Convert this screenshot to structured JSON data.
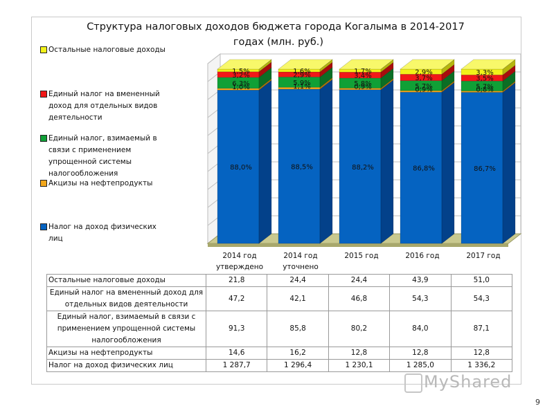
{
  "slide": {
    "title_line1": "Структура налоговых доходов бюджета города Когалыма  в 2014-2017",
    "title_line2": "годах  (млн. руб.)",
    "page_number": "9",
    "watermark": "MyShared"
  },
  "colors": {
    "series": [
      "#0563c1",
      "#f2a71b",
      "#10a036",
      "#f21818",
      "#f2f21a"
    ],
    "series_dark": [
      "#03418a",
      "#b07608",
      "#0b6e25",
      "#a80d0d",
      "#b5b50e"
    ],
    "series_top": [
      "#3f8ad8",
      "#f7c45c",
      "#45c069",
      "#f75454",
      "#f8f86a"
    ],
    "wall": "#ffffff",
    "floor": "#c9c98f",
    "grid": "#bfbfbf"
  },
  "legend": [
    "Остальные налоговые доходы",
    "Единый налог на вмененный доход для отдельных видов деятельности",
    "Единый налог, взимаемый в связи с применением упрощенной системы налогообложения",
    "Акцизы на нефтепродукты",
    "Налог на доход физических лиц"
  ],
  "chart_data": {
    "type": "bar",
    "stacked": true,
    "three_d": true,
    "title": "Структура налоговых доходов бюджета города Когалыма  в 2014-2017 годах  (млн. руб.)",
    "categories": [
      "2014 год утверждено",
      "2014 год уточнено",
      "2015 год",
      "2016 год",
      "2017 год"
    ],
    "series": [
      {
        "name": "Налог на доход физических лиц",
        "values": [
          88.0,
          88.5,
          88.2,
          86.8,
          86.7
        ],
        "labels": [
          "88,0%",
          "88,5%",
          "88,2%",
          "86,8%",
          "86,7%"
        ]
      },
      {
        "name": "Акцизы на нефтепродукты",
        "values": [
          1.0,
          1.1,
          0.9,
          0.9,
          0.8
        ],
        "labels": [
          "1,0%",
          "1,1%",
          "0,9%",
          "0,9%",
          "0,8%"
        ]
      },
      {
        "name": "Единый налог, взимаемый в связи с применением упрощенной системы налогообложения",
        "values": [
          6.3,
          5.9,
          5.8,
          5.7,
          5.7
        ],
        "labels": [
          "6,3%",
          "5,9%",
          "5,8%",
          "5,7%",
          "5,7%"
        ]
      },
      {
        "name": "Единый налог на вмененный доход для отдельных видов деятельности",
        "values": [
          3.2,
          2.9,
          3.4,
          3.7,
          3.5
        ],
        "labels": [
          "3,2%",
          "2,9%",
          "3,4%",
          "3,7%",
          "3,5%"
        ]
      },
      {
        "name": "Остальные налоговые доходы",
        "values": [
          1.5,
          1.6,
          1.7,
          2.9,
          3.3
        ],
        "labels": [
          "1,5%",
          "1,6%",
          "1,7%",
          "2,9%",
          "3,3%"
        ]
      }
    ],
    "table": {
      "rows": [
        {
          "label": "Остальные налоговые доходы",
          "values": [
            "21,8",
            "24,4",
            "24,4",
            "43,9",
            "51,0"
          ]
        },
        {
          "label": "Единый налог на вмененный доход для отдельных видов деятельности",
          "values": [
            "47,2",
            "42,1",
            "46,8",
            "54,3",
            "54,3"
          ]
        },
        {
          "label": "Единый налог, взимаемый в связи с применением упрощенной системы налогообложения",
          "values": [
            "91,3",
            "85,8",
            "80,2",
            "84,0",
            "87,1"
          ]
        },
        {
          "label": "Акцизы на нефтепродукты",
          "values": [
            "14,6",
            "16,2",
            "12,8",
            "12,8",
            "12,8"
          ]
        },
        {
          "label": "Налог на доход физических лиц",
          "values": [
            "1 287,7",
            "1 296,4",
            "1 230,1",
            "1 285,0",
            "1 336,2"
          ]
        }
      ]
    }
  }
}
